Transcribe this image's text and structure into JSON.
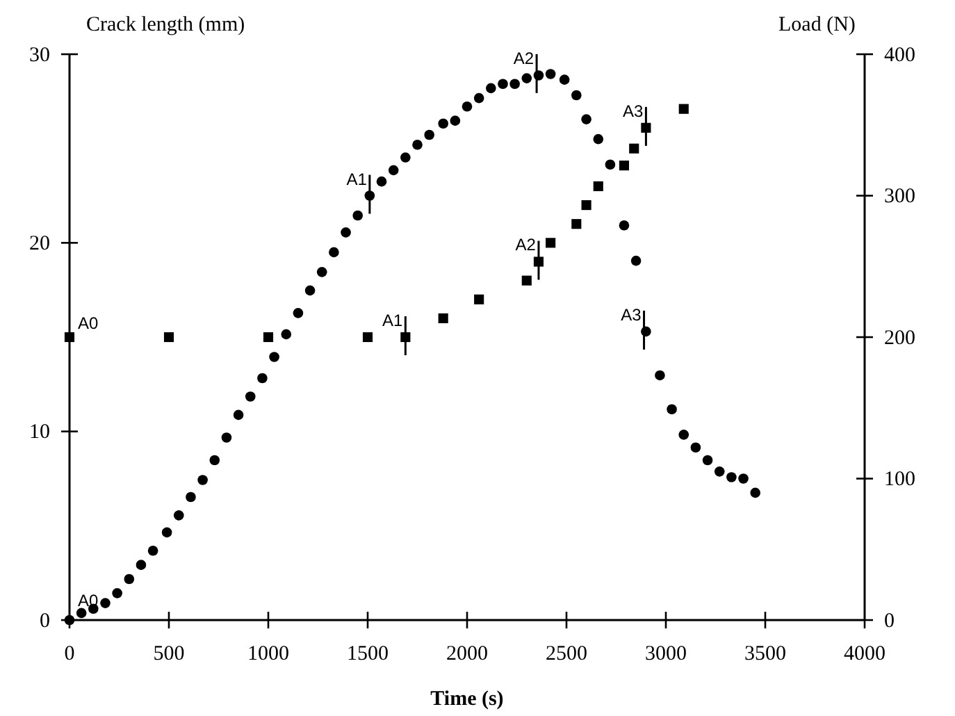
{
  "chart_data": {
    "type": "scatter",
    "xlabel": "Time (s)",
    "ylabel": "Crack length (mm)",
    "y2label": "Load (N)",
    "xlim": [
      0,
      4000
    ],
    "xticks": [
      0,
      500,
      1000,
      1500,
      2000,
      2500,
      3000,
      3500,
      4000
    ],
    "ylim": [
      0,
      30
    ],
    "yticks": [
      0,
      10,
      20,
      30
    ],
    "y2lim": [
      0,
      400
    ],
    "y2ticks": [
      0,
      100,
      200,
      300,
      400
    ],
    "grid": false,
    "series": [
      {
        "marker": "square",
        "color": "#000000",
        "x": [
          0,
          500,
          1000,
          1500,
          1690,
          1880,
          2060,
          2300,
          2360,
          2420,
          2550,
          2600,
          2660,
          2790,
          2840,
          2900,
          3090
        ],
        "values": [
          15,
          15,
          15,
          15,
          15,
          16,
          17,
          18,
          19,
          20,
          21,
          22,
          23,
          24.1,
          25,
          26.1,
          27.1
        ]
      },
      {
        "marker": "circle",
        "color": "#000000",
        "axis": "y2",
        "x": [
          0,
          60,
          120,
          180,
          240,
          300,
          360,
          420,
          490,
          550,
          610,
          670,
          730,
          790,
          850,
          910,
          970,
          1030,
          1090,
          1150,
          1210,
          1270,
          1330,
          1390,
          1450,
          1510,
          1570,
          1630,
          1690,
          1750,
          1810,
          1880,
          1940,
          2000,
          2060,
          2120,
          2180,
          2240,
          2300,
          2360,
          2420,
          2490,
          2550,
          2600,
          2660,
          2720,
          2790,
          2850,
          2900,
          2970,
          3030,
          3090,
          3150,
          3210,
          3270,
          3330,
          3390,
          3450
        ],
        "values": [
          0,
          5,
          8,
          12,
          19,
          29,
          39,
          49,
          62,
          74,
          87,
          99,
          113,
          129,
          145,
          158,
          171,
          186,
          202,
          217,
          233,
          246,
          260,
          274,
          286,
          300,
          310,
          318,
          327,
          336,
          343,
          351,
          353,
          363,
          369,
          376,
          379,
          379,
          383,
          385,
          386,
          382,
          371,
          354,
          340,
          322,
          279,
          254,
          204,
          173,
          149,
          131,
          122,
          113,
          105,
          101,
          100,
          90
        ]
      }
    ],
    "annotations": [
      {
        "text": "A0",
        "x": 0,
        "y": 15
      },
      {
        "text": "A0",
        "x": 0,
        "y": 0
      },
      {
        "text": "A1",
        "x": 1690,
        "y": 15
      },
      {
        "text": "A1",
        "x": 1510,
        "y": 22.5
      },
      {
        "text": "A2",
        "x": 2360,
        "y": 19
      },
      {
        "text": "A2",
        "x": 2350,
        "y": 28.9
      },
      {
        "text": "A3",
        "x": 2900,
        "y": 26.1
      },
      {
        "text": "A3",
        "x": 2890,
        "y": 15.3
      }
    ]
  }
}
